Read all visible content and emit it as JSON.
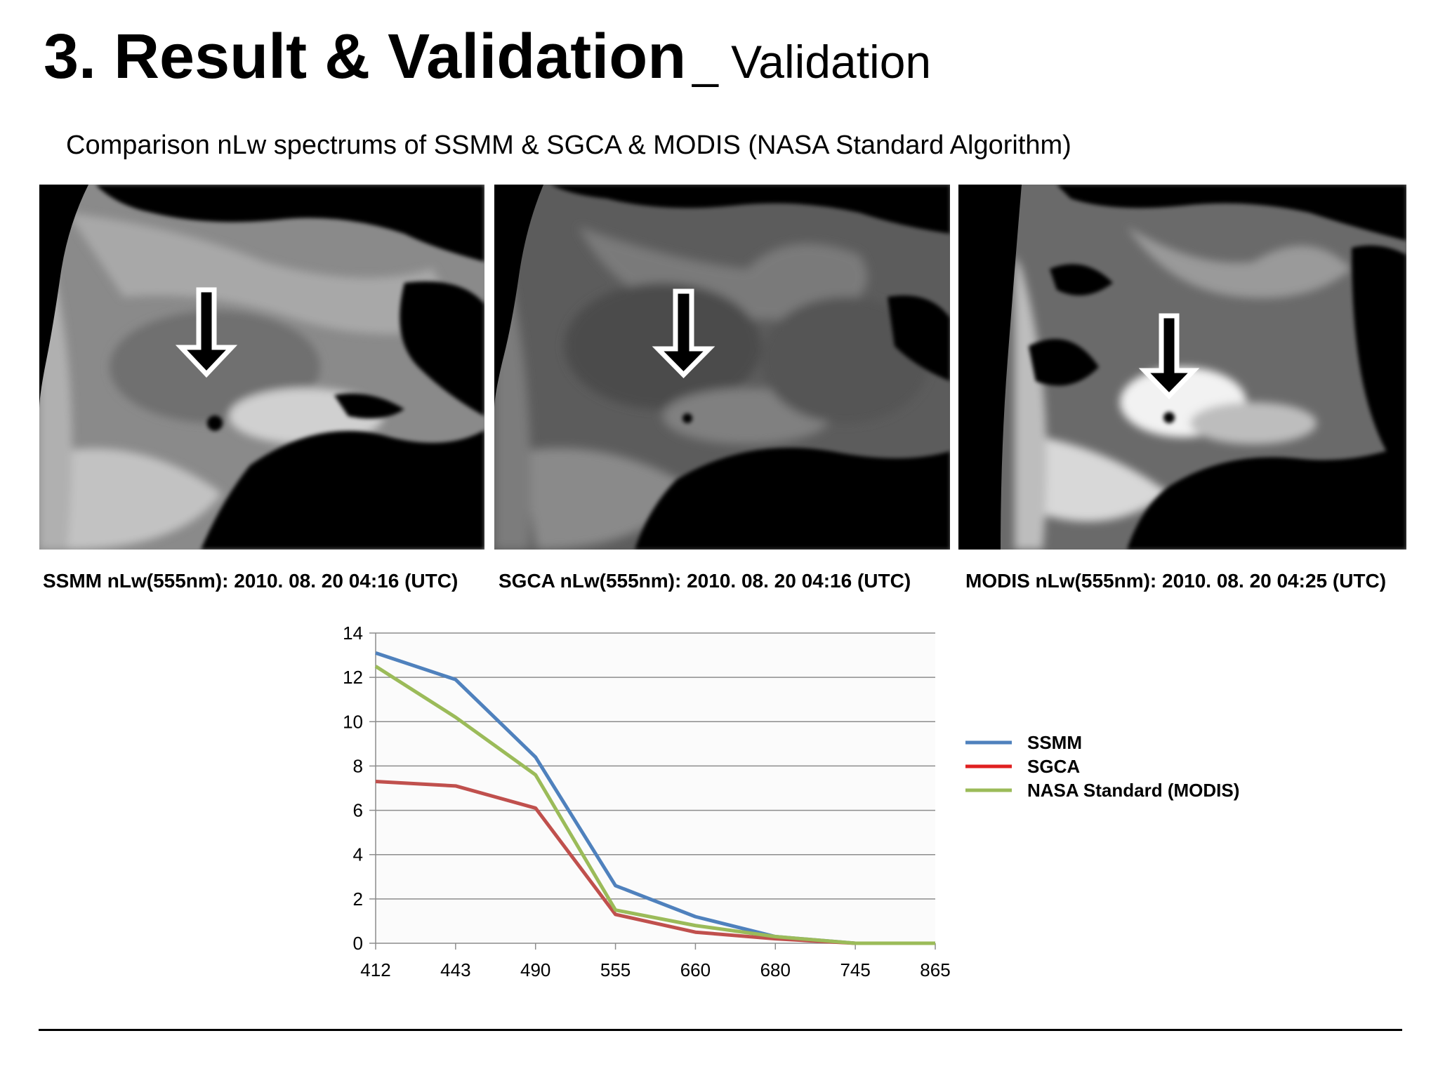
{
  "slide": {
    "title_main": "3. Result & Validation",
    "title_sub": "_ Validation",
    "subtitle": "Comparison nLw spectrums of SSMM & SGCA & MODIS (NASA Standard Algorithm)"
  },
  "panels": [
    {
      "caption": "SSMM nLw(555nm): 2010. 08. 20 04:16 (UTC)"
    },
    {
      "caption": "SGCA nLw(555nm): 2010. 08. 20 04:16 (UTC)"
    },
    {
      "caption": "MODIS nLw(555nm): 2010. 08. 20 04:25 (UTC)"
    }
  ],
  "chart_data": {
    "type": "line",
    "categories": [
      "412",
      "443",
      "490",
      "555",
      "660",
      "680",
      "745",
      "865"
    ],
    "ylim": [
      0,
      14
    ],
    "yticks": [
      0,
      2,
      4,
      6,
      8,
      10,
      12,
      14
    ],
    "grid": true,
    "legend_position": "right",
    "series": [
      {
        "name": "SSMM",
        "color": "#4f81bd",
        "values": [
          13.1,
          11.9,
          8.4,
          2.6,
          1.2,
          0.3,
          0.0,
          0.0
        ]
      },
      {
        "name": "SGCA",
        "color": "#c0504d",
        "legend_color": "#e02020",
        "values": [
          7.3,
          7.1,
          6.1,
          1.3,
          0.5,
          0.2,
          0.0,
          0.0
        ]
      },
      {
        "name": "NASA Standard (MODIS)",
        "color": "#9bbb59",
        "values": [
          12.5,
          10.2,
          7.6,
          1.5,
          0.8,
          0.3,
          0.0,
          0.0
        ]
      }
    ]
  }
}
